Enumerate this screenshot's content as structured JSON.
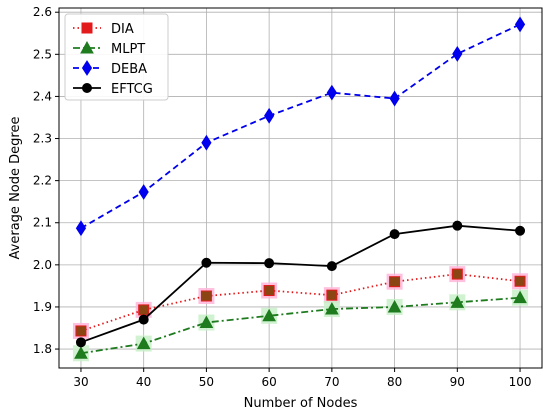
{
  "chart_data": {
    "type": "line",
    "xlabel": "Number of Nodes",
    "ylabel": "Average Node Degree",
    "x": [
      30,
      40,
      50,
      60,
      70,
      80,
      90,
      100
    ],
    "xlim": [
      26.5,
      103.5
    ],
    "ylim": [
      1.755,
      2.61
    ],
    "xticks": [
      "30",
      "40",
      "50",
      "60",
      "70",
      "80",
      "90",
      "100"
    ],
    "yticks": [
      "1.8",
      "1.9",
      "2.0",
      "2.1",
      "2.2",
      "2.3",
      "2.4",
      "2.5",
      "2.6"
    ],
    "grid": true,
    "legend_position": "top-left",
    "series": [
      {
        "name": "DIA",
        "values": [
          1.843,
          1.893,
          1.926,
          1.939,
          1.928,
          1.96,
          1.978,
          1.961
        ],
        "color": "#e31a1c",
        "marker": "square",
        "dash": "dotted",
        "marker_fill": "#8b4513",
        "highlight": "#ffb6d9"
      },
      {
        "name": "MLPT",
        "values": [
          1.79,
          1.813,
          1.863,
          1.879,
          1.895,
          1.9,
          1.911,
          1.922
        ],
        "color": "#1e7b1e",
        "marker": "triangle",
        "dash": "dashdot",
        "marker_fill": "#1e7b1e",
        "highlight": "#c8f0c8"
      },
      {
        "name": "DEBA",
        "values": [
          2.087,
          2.173,
          2.29,
          2.354,
          2.409,
          2.395,
          2.501,
          2.571
        ],
        "color": "#0000ee",
        "marker": "diamond",
        "dash": "dashed",
        "marker_fill": "#0000ee",
        "highlight": "none"
      },
      {
        "name": "EFTCG",
        "values": [
          1.816,
          1.87,
          2.005,
          2.004,
          1.997,
          2.073,
          2.093,
          2.081
        ],
        "color": "#000000",
        "marker": "circle",
        "dash": "solid",
        "marker_fill": "#000000",
        "highlight": "none"
      }
    ]
  }
}
